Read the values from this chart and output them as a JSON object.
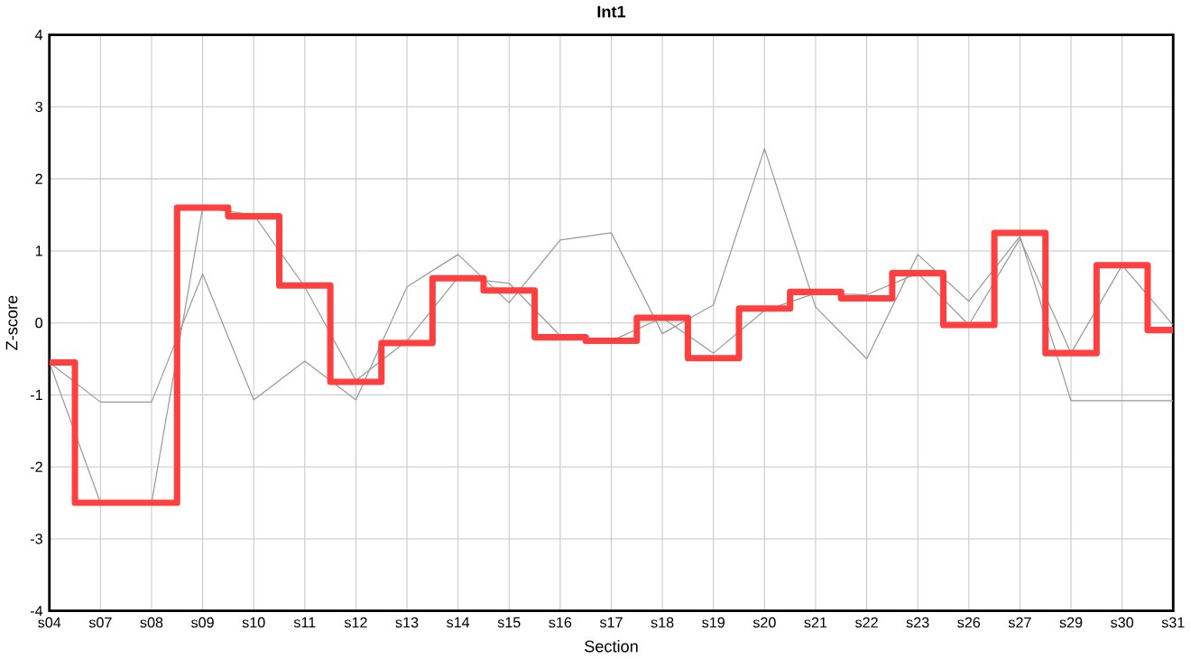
{
  "chart_data": {
    "type": "line",
    "title": "Int1",
    "xlabel": "Section",
    "ylabel": "Z-score",
    "categories": [
      "s04",
      "s07",
      "s08",
      "s09",
      "s10",
      "s11",
      "s12",
      "s13",
      "s14",
      "s15",
      "s16",
      "s17",
      "s18",
      "s19",
      "s20",
      "s21",
      "s22",
      "s23",
      "s26",
      "s27",
      "s29",
      "s30",
      "s31"
    ],
    "series": [
      {
        "color": "#999999",
        "values": [
          -0.55,
          -1.1,
          -1.1,
          0.68,
          -1.07,
          -0.53,
          -1.07,
          0.5,
          0.95,
          0.28,
          1.15,
          1.25,
          -0.15,
          0.25,
          2.42,
          0.22,
          -0.5,
          0.95,
          0.3,
          1.2,
          -1.08,
          -1.08,
          -1.08
        ]
      },
      {
        "color": "#999999",
        "values": [
          -0.55,
          -2.5,
          -2.5,
          1.6,
          1.5,
          0.5,
          -0.8,
          -0.25,
          0.63,
          0.55,
          -0.18,
          -0.25,
          0.07,
          -0.42,
          0.17,
          0.41,
          0.39,
          0.69,
          -0.03,
          1.17,
          -0.42,
          0.8,
          -0.03
        ]
      },
      {
        "type": "step",
        "color": "#ff4040",
        "values": [
          -0.55,
          -2.5,
          -2.5,
          1.6,
          1.48,
          0.52,
          -0.82,
          -0.28,
          0.62,
          0.45,
          -0.2,
          -0.25,
          0.07,
          -0.49,
          0.2,
          0.43,
          0.34,
          0.69,
          -0.03,
          1.25,
          -0.42,
          0.8,
          -0.1
        ]
      }
    ],
    "ylim": [
      -4,
      4
    ],
    "yticks": [
      -4,
      -3,
      -2,
      -1,
      0,
      1,
      2,
      3,
      4
    ],
    "grid": true,
    "marker": "none",
    "line_style": "solid"
  }
}
